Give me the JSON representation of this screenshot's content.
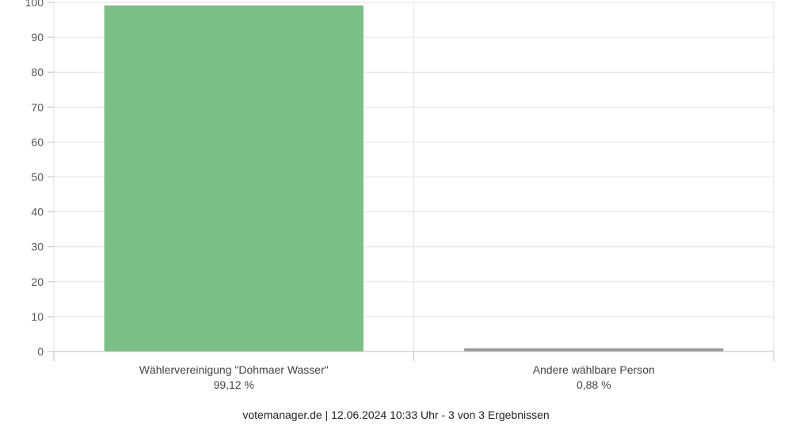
{
  "chart_data": {
    "type": "bar",
    "categories": [
      "Wählervereinigung \"Dohmaer Wasser\"",
      "Andere wählbare Person"
    ],
    "value_labels": [
      "99,12 %",
      "0,88 %"
    ],
    "values": [
      99.12,
      0.88
    ],
    "colors": [
      "#7bbf87",
      "#999999"
    ],
    "ylim": [
      0,
      100
    ],
    "yticks": [
      0,
      10,
      20,
      30,
      40,
      50,
      60,
      70,
      80,
      90,
      100
    ],
    "grid": true
  },
  "footer": {
    "text": "votemanager.de | 12.06.2024 10:33 Uhr - 3 von 3 Ergebnissen"
  }
}
